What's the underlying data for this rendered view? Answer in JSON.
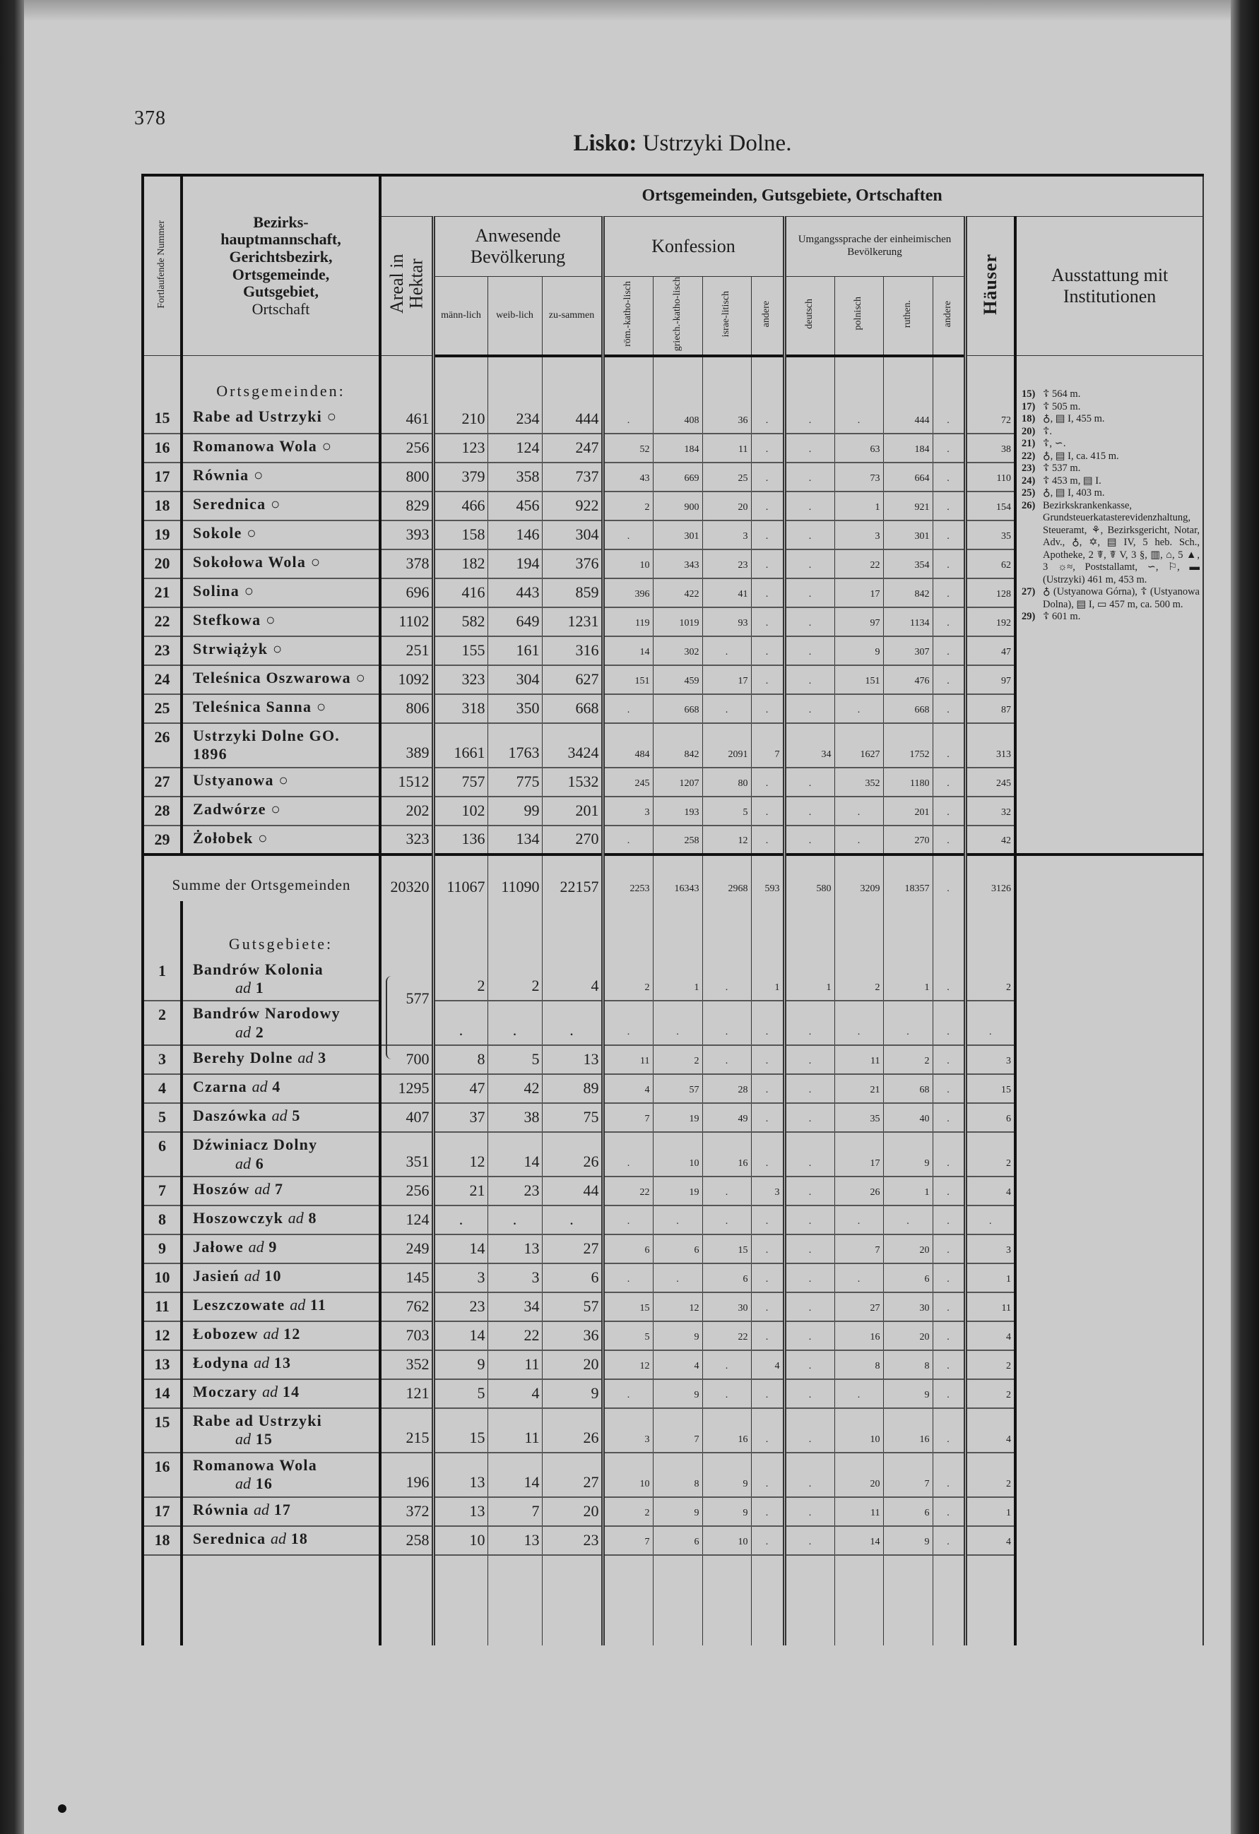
{
  "page": {
    "number": "378",
    "title_bold": "Lisko:",
    "title_rest": "Ustrzyki Dolne."
  },
  "header": {
    "nr": "Fortlaufende Nummer",
    "name_bold": "Bezirks-hauptmannschaft, Gerichtsbezirk, Ortsgemeinde, Gutsgebiet,",
    "name_plain": "Ortschaft",
    "group_title": "Ortsgemeinden, Gutsgebiete, Ortschaften",
    "areal": "Areal in Hektar",
    "population": "Anwesende Bevölkerung",
    "pop_cols": [
      "männ-lich",
      "weib-lich",
      "zu-sammen"
    ],
    "konfession": "Konfession",
    "konf_cols": [
      "röm.-katho-lisch",
      "griech.-katho-lisch",
      "israe-litisch",
      "andere"
    ],
    "sprache": "Umgangssprache der einheimischen Bevölkerung",
    "sprache_cols": [
      "deutsch",
      "polnisch",
      "ruthen.",
      "andere"
    ],
    "haeuser": "Häuser",
    "ausstattung": "Ausstattung mit Institutionen"
  },
  "ortsgemeinden": {
    "label": "Ortsgemeinden:",
    "rows": [
      {
        "nr": "15",
        "name": "Rabe ad Ustrzyki ○",
        "values": [
          "461",
          "210",
          "234",
          "444",
          ".",
          "408",
          "36",
          ".",
          ".",
          ".",
          "444",
          ".",
          "72"
        ]
      },
      {
        "nr": "16",
        "name": "Romanowa Wola ○",
        "values": [
          "256",
          "123",
          "124",
          "247",
          "52",
          "184",
          "11",
          ".",
          ".",
          "63",
          "184",
          ".",
          "38"
        ]
      },
      {
        "nr": "17",
        "name": "Równia ○",
        "values": [
          "800",
          "379",
          "358",
          "737",
          "43",
          "669",
          "25",
          ".",
          ".",
          "73",
          "664",
          ".",
          "110"
        ]
      },
      {
        "nr": "18",
        "name": "Serednica ○",
        "values": [
          "829",
          "466",
          "456",
          "922",
          "2",
          "900",
          "20",
          ".",
          ".",
          "1",
          "921",
          ".",
          "154"
        ]
      },
      {
        "nr": "19",
        "name": "Sokole ○",
        "values": [
          "393",
          "158",
          "146",
          "304",
          ".",
          "301",
          "3",
          ".",
          ".",
          "3",
          "301",
          ".",
          "35"
        ]
      },
      {
        "nr": "20",
        "name": "Sokołowa Wola ○",
        "values": [
          "378",
          "182",
          "194",
          "376",
          "10",
          "343",
          "23",
          ".",
          ".",
          "22",
          "354",
          ".",
          "62"
        ]
      },
      {
        "nr": "21",
        "name": "Solina ○",
        "values": [
          "696",
          "416",
          "443",
          "859",
          "396",
          "422",
          "41",
          ".",
          ".",
          "17",
          "842",
          ".",
          "128"
        ]
      },
      {
        "nr": "22",
        "name": "Stefkowa ○",
        "values": [
          "1102",
          "582",
          "649",
          "1231",
          "119",
          "1019",
          "93",
          ".",
          ".",
          "97",
          "1134",
          ".",
          "192"
        ]
      },
      {
        "nr": "23",
        "name": "Strwiążyk ○",
        "values": [
          "251",
          "155",
          "161",
          "316",
          "14",
          "302",
          ".",
          ".",
          ".",
          "9",
          "307",
          ".",
          "47"
        ]
      },
      {
        "nr": "24",
        "name": "Teleśnica Oszwarowa ○",
        "values": [
          "1092",
          "323",
          "304",
          "627",
          "151",
          "459",
          "17",
          ".",
          ".",
          "151",
          "476",
          ".",
          "97"
        ]
      },
      {
        "nr": "25",
        "name": "Teleśnica Sanna ○",
        "values": [
          "806",
          "318",
          "350",
          "668",
          ".",
          "668",
          ".",
          ".",
          ".",
          ".",
          "668",
          ".",
          "87"
        ]
      },
      {
        "nr": "26",
        "name": "Ustrzyki Dolne GO. 1896",
        "values": [
          "389",
          "1661",
          "1763",
          "3424",
          "484",
          "842",
          "2091",
          "7",
          "34",
          "1627",
          "1752",
          ".",
          "313"
        ]
      },
      {
        "nr": "27",
        "name": "Ustyanowa ○",
        "values": [
          "1512",
          "757",
          "775",
          "1532",
          "245",
          "1207",
          "80",
          ".",
          ".",
          "352",
          "1180",
          ".",
          "245"
        ]
      },
      {
        "nr": "28",
        "name": "Zadwórze ○",
        "values": [
          "202",
          "102",
          "99",
          "201",
          "3",
          "193",
          "5",
          ".",
          ".",
          ".",
          "201",
          ".",
          "32"
        ]
      },
      {
        "nr": "29",
        "name": "Żołobek ○",
        "values": [
          "323",
          "136",
          "134",
          "270",
          ".",
          "258",
          "12",
          ".",
          ".",
          ".",
          "270",
          ".",
          "42"
        ]
      }
    ],
    "sum_label": "Summe der Ortsgemeinden",
    "sum_values": [
      "20320",
      "11067",
      "11090",
      "22157",
      "2253",
      "16343",
      "2968",
      "593",
      "580",
      "3209",
      "18357",
      ".",
      "3126"
    ]
  },
  "gutsgebiete": {
    "label": "Gutsgebiete:",
    "ad_word": "ad",
    "rows": [
      {
        "nr": "1",
        "name": "Bandrów Kolonia",
        "ad": "1",
        "values": [
          "577",
          "2",
          "2",
          "4",
          "2",
          "1",
          ".",
          "1",
          "1",
          "2",
          "1",
          ".",
          "2"
        ]
      },
      {
        "nr": "2",
        "name": "Bandrów Narodowy",
        "ad": "2",
        "values": [
          null,
          ".",
          ".",
          ".",
          ".",
          ".",
          ".",
          ".",
          ".",
          ".",
          ".",
          ".",
          "."
        ]
      },
      {
        "nr": "3",
        "name": "Berehy Dolne",
        "ad": "3",
        "values": [
          "700",
          "8",
          "5",
          "13",
          "11",
          "2",
          ".",
          ".",
          ".",
          "11",
          "2",
          ".",
          "3"
        ]
      },
      {
        "nr": "4",
        "name": "Czarna",
        "ad": "4",
        "values": [
          "1295",
          "47",
          "42",
          "89",
          "4",
          "57",
          "28",
          ".",
          ".",
          "21",
          "68",
          ".",
          "15"
        ]
      },
      {
        "nr": "5",
        "name": "Daszówka",
        "ad": "5",
        "values": [
          "407",
          "37",
          "38",
          "75",
          "7",
          "19",
          "49",
          ".",
          ".",
          "35",
          "40",
          ".",
          "6"
        ]
      },
      {
        "nr": "6",
        "name": "Dźwiniacz Dolny",
        "ad": "6",
        "values": [
          "351",
          "12",
          "14",
          "26",
          ".",
          "10",
          "16",
          ".",
          ".",
          "17",
          "9",
          ".",
          "2"
        ]
      },
      {
        "nr": "7",
        "name": "Hoszów",
        "ad": "7",
        "values": [
          "256",
          "21",
          "23",
          "44",
          "22",
          "19",
          ".",
          "3",
          ".",
          "26",
          "1",
          ".",
          "4"
        ]
      },
      {
        "nr": "8",
        "name": "Hoszowczyk",
        "ad": "8",
        "values": [
          "124",
          ".",
          ".",
          ".",
          ".",
          ".",
          ".",
          ".",
          ".",
          ".",
          ".",
          ".",
          "."
        ]
      },
      {
        "nr": "9",
        "name": "Jałowe",
        "ad": "9",
        "values": [
          "249",
          "14",
          "13",
          "27",
          "6",
          "6",
          "15",
          ".",
          ".",
          "7",
          "20",
          ".",
          "3"
        ]
      },
      {
        "nr": "10",
        "name": "Jasień",
        "ad": "10",
        "values": [
          "145",
          "3",
          "3",
          "6",
          ".",
          ".",
          "6",
          ".",
          ".",
          ".",
          "6",
          ".",
          "1"
        ]
      },
      {
        "nr": "11",
        "name": "Leszczowate",
        "ad": "11",
        "values": [
          "762",
          "23",
          "34",
          "57",
          "15",
          "12",
          "30",
          ".",
          ".",
          "27",
          "30",
          ".",
          "11"
        ]
      },
      {
        "nr": "12",
        "name": "Łobozew",
        "ad": "12",
        "values": [
          "703",
          "14",
          "22",
          "36",
          "5",
          "9",
          "22",
          ".",
          ".",
          "16",
          "20",
          ".",
          "4"
        ]
      },
      {
        "nr": "13",
        "name": "Łodyna",
        "ad": "13",
        "values": [
          "352",
          "9",
          "11",
          "20",
          "12",
          "4",
          ".",
          "4",
          ".",
          "8",
          "8",
          ".",
          "2"
        ]
      },
      {
        "nr": "14",
        "name": "Moczary",
        "ad": "14",
        "values": [
          "121",
          "5",
          "4",
          "9",
          ".",
          "9",
          ".",
          ".",
          ".",
          ".",
          "9",
          ".",
          "2"
        ]
      },
      {
        "nr": "15",
        "name": "Rabe ad Ustrzyki",
        "ad": "15",
        "values": [
          "215",
          "15",
          "11",
          "26",
          "3",
          "7",
          "16",
          ".",
          ".",
          "10",
          "16",
          ".",
          "4"
        ]
      },
      {
        "nr": "16",
        "name": "Romanowa Wola",
        "ad": "16",
        "values": [
          "196",
          "13",
          "14",
          "27",
          "10",
          "8",
          "9",
          ".",
          ".",
          "20",
          "7",
          ".",
          "2"
        ]
      },
      {
        "nr": "17",
        "name": "Równia",
        "ad": "17",
        "values": [
          "372",
          "13",
          "7",
          "20",
          "2",
          "9",
          "9",
          ".",
          ".",
          "11",
          "6",
          ".",
          "1"
        ]
      },
      {
        "nr": "18",
        "name": "Serednica",
        "ad": "18",
        "values": [
          "258",
          "10",
          "13",
          "23",
          "7",
          "6",
          "10",
          ".",
          ".",
          "14",
          "9",
          ".",
          "4"
        ]
      }
    ]
  },
  "notes": [
    {
      "nr": "15)",
      "text": "☦ 564 m."
    },
    {
      "nr": "17)",
      "text": "☦ 505 m."
    },
    {
      "nr": "18)",
      "text": "♁, ▤ I, 455 m."
    },
    {
      "nr": "20)",
      "text": "☦."
    },
    {
      "nr": "21)",
      "text": "☦, ∽."
    },
    {
      "nr": "22)",
      "text": "♁, ▤ I, ca. 415 m."
    },
    {
      "nr": "23)",
      "text": "☦ 537 m."
    },
    {
      "nr": "24)",
      "text": "☦ 453 m, ▤ I."
    },
    {
      "nr": "25)",
      "text": "♁, ▤ I, 403 m."
    },
    {
      "nr": "26)",
      "text": "Bezirkskrankenkasse, Grundsteuerkatasterevidenzhaltung, Steueramt, ⚘, Bezirksgericht, Notar, Adv., ♁, ✡, ▤ IV, 5 heb. Sch., Apotheke, 2 ☤, ☤ V, 3 §, ▥, ⌂, 5 ▲, 3 ☼≈, Poststallamt, ∽, ⚐, ▬ (Ustrzyki) 461 m, 453 m."
    },
    {
      "nr": "27)",
      "text": "♁ (Ustyanowa Górna), ☦ (Ustyanowa Dolna), ▤ I, ▭ 457 m, ca. 500 m."
    },
    {
      "nr": "29)",
      "text": "☦ 601 m."
    }
  ]
}
